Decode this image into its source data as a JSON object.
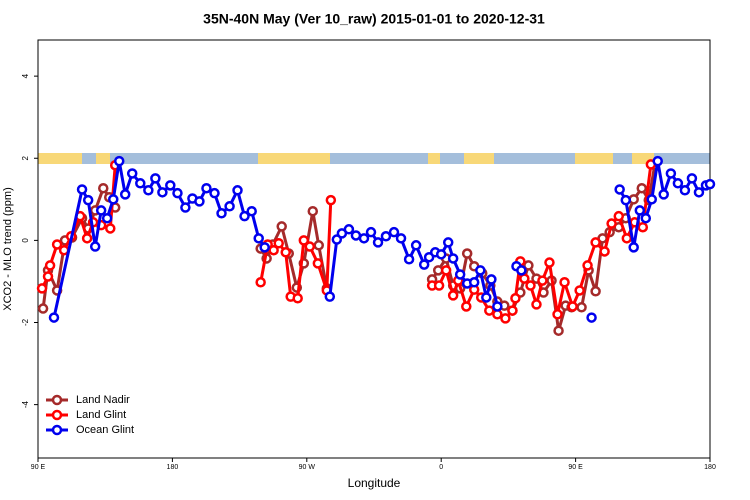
{
  "chart_data": {
    "type": "line",
    "title": "35N-40N May (Ver 10_raw)   2015-01-01 to 2020-12-31",
    "x_label": "Longitude",
    "y_label": "XCO2 - MLO trend (ppm)",
    "xlim": [
      90,
      540
    ],
    "xticks": [
      {
        "value": 90,
        "label": "90 E"
      },
      {
        "value": 180,
        "label": "180"
      },
      {
        "value": 270,
        "label": "90 W"
      },
      {
        "value": 360,
        "label": "0"
      },
      {
        "value": 450,
        "label": "90 E"
      },
      {
        "value": 540,
        "label": "180"
      }
    ],
    "ylim": [
      -5.3,
      4.88
    ],
    "yticks": [
      -4,
      -2,
      0,
      2,
      4
    ],
    "legend": "bottom-left",
    "series": [
      {
        "name": "Land Nadir",
        "color": "#a52a2a",
        "x": [
          93.4,
          96.7,
          102.8,
          108.1,
          112.8,
          119.5,
          123.6,
          128.3,
          133.7,
          137.7,
          141.7,
          null,
          239.1,
          243.1,
          247.2,
          253.2,
          257.9,
          263.3,
          268,
          274,
          278,
          283.4,
          null,
          353.9,
          358,
          363.3,
          368,
          372.7,
          377.4,
          382.1,
          387.5,
          392.9,
          397.6,
          402.3,
          407.7,
          413,
          418.4,
          423.8,
          428.5,
          433.9,
          438.6,
          443.3,
          447.3,
          454,
          458.7,
          463.4,
          468.1,
          472.8,
          478.9,
          483.6,
          488.9,
          494.3,
          499,
          503
        ],
        "values": [
          -1.66,
          -0.73,
          -1.22,
          0,
          0.07,
          0.54,
          0.29,
          0.73,
          1.27,
          1.05,
          0.8,
          null,
          -0.2,
          -0.44,
          -0.1,
          0.34,
          -0.32,
          -1.15,
          -0.56,
          0.71,
          -0.12,
          -1.17,
          null,
          -0.95,
          -0.73,
          -0.44,
          -1.1,
          -1.17,
          -0.32,
          -0.63,
          -0.8,
          -1.1,
          -1.49,
          -1.59,
          -1.71,
          -1.27,
          -0.61,
          -0.93,
          -1.27,
          -0.98,
          -2.2,
          -1.59,
          -1.63,
          -1.63,
          -0.73,
          -1.24,
          0.05,
          0.2,
          0.32,
          0.54,
          1.0,
          1.27,
          0.98,
          1.83
        ]
      },
      {
        "name": "Land Glint",
        "color": "#ff0000",
        "x": [
          92.7,
          96.7,
          98.1,
          102.8,
          107.5,
          112.2,
          118.2,
          122.9,
          126.9,
          132.3,
          138.4,
          141.7,
          null,
          239.1,
          243.8,
          247.8,
          251.2,
          255.9,
          259.2,
          263.9,
          268,
          272,
          277.4,
          283.4,
          286.1,
          null,
          353.9,
          358.6,
          363.3,
          368,
          371.4,
          376.8,
          382.1,
          386.8,
          392.2,
          397.6,
          403,
          407.7,
          409.7,
          413,
          415.7,
          419.8,
          423.8,
          427.8,
          432.5,
          437.9,
          442.6,
          448,
          452.7,
          458,
          463.4,
          469.4,
          474.1,
          478.9,
          484.3,
          489.6,
          495,
          500.4
        ],
        "values": [
          -1.17,
          -0.88,
          -0.61,
          -0.1,
          -0.24,
          0.1,
          0.59,
          0.05,
          0.44,
          0.37,
          0.29,
          1.83,
          null,
          -1.02,
          -0.1,
          -0.24,
          -0.07,
          -0.29,
          -1.37,
          -1.41,
          0,
          -0.15,
          -0.56,
          -1.22,
          0.98,
          null,
          -1.1,
          -1.1,
          -0.73,
          -1.34,
          -0.98,
          -1.61,
          -1.2,
          -1.39,
          -1.71,
          -1.8,
          -1.9,
          -1.71,
          -1.41,
          -0.51,
          -0.93,
          -1.1,
          -1.56,
          -0.98,
          -0.54,
          -1.8,
          -1.02,
          -1.61,
          -1.22,
          -0.61,
          -0.05,
          -0.27,
          0.41,
          0.59,
          0.05,
          0.44,
          0.32,
          1.85
        ]
      },
      {
        "name": "Ocean Glint",
        "color": "#0000ee",
        "x": [
          100.7,
          119.5,
          123.6,
          128.3,
          132.3,
          136.3,
          140.4,
          144.4,
          148.4,
          153.1,
          158.5,
          163.9,
          168.6,
          173.3,
          178.6,
          183.4,
          188.7,
          193.4,
          198.1,
          202.8,
          208.2,
          212.9,
          218.3,
          223.6,
          228.3,
          233.1,
          237.8,
          241.8,
          null,
          285.4,
          290.1,
          293.5,
          298.2,
          302.9,
          308.3,
          313,
          317.7,
          323,
          328.4,
          333.1,
          338.5,
          343.2,
          348.6,
          351.9,
          356,
          360,
          364.7,
          368,
          372.7,
          377.4,
          382.1,
          386.2,
          390.2,
          393.6,
          397.6,
          null,
          410.4,
          413.7,
          null,
          460.7,
          null,
          479.5,
          483.6,
          488.9,
          493,
          497,
          501,
          505,
          509,
          513.8,
          518.5,
          523.2,
          527.9,
          532.6,
          537.3,
          540
        ],
        "values": [
          -1.88,
          1.24,
          0.98,
          -0.15,
          0.73,
          0.54,
          1.0,
          1.93,
          1.12,
          1.63,
          1.39,
          1.22,
          1.51,
          1.17,
          1.34,
          1.15,
          0.8,
          1.02,
          0.95,
          1.27,
          1.15,
          0.66,
          0.83,
          1.22,
          0.59,
          0.71,
          0.05,
          -0.17,
          null,
          -1.37,
          0.02,
          0.17,
          0.27,
          0.12,
          0.05,
          0.2,
          -0.05,
          0.1,
          0.2,
          0.05,
          -0.46,
          -0.12,
          -0.59,
          -0.41,
          -0.29,
          -0.34,
          -0.05,
          -0.44,
          -0.83,
          -1.05,
          -1.02,
          -0.73,
          -1.39,
          -0.95,
          -1.61,
          null,
          -0.63,
          -0.73,
          null,
          -1.88,
          null,
          1.24,
          0.98,
          -0.17,
          0.73,
          0.54,
          1.0,
          1.93,
          1.12,
          1.63,
          1.39,
          1.22,
          1.51,
          1.17,
          1.34,
          1.37
        ]
      }
    ]
  }
}
